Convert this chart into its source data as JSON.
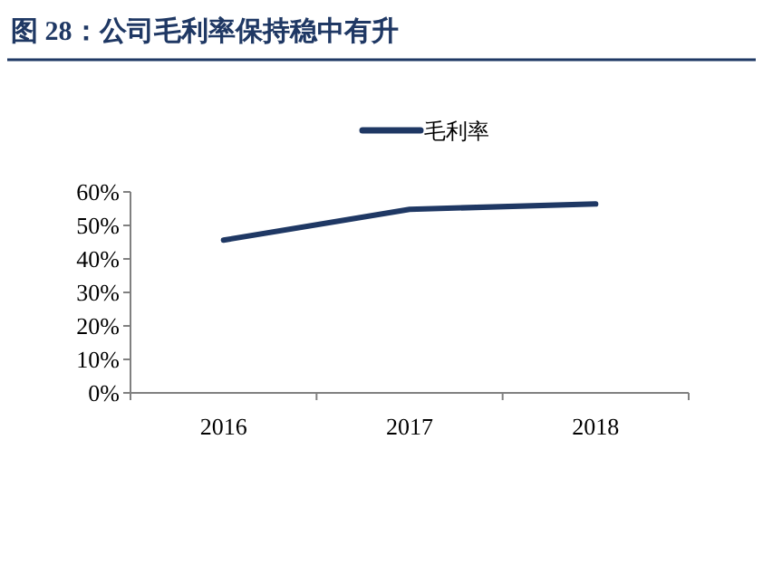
{
  "chart_data": {
    "type": "line",
    "title": "图 28：公司毛利率保持稳中有升",
    "categories": [
      "2016",
      "2017",
      "2018"
    ],
    "series": [
      {
        "name": "毛利率",
        "color": "#1f3864",
        "values": [
          45.6,
          54.8,
          56.4
        ]
      }
    ],
    "ylim": [
      0,
      60
    ],
    "yticks": [
      {
        "value": 0,
        "label": "0%"
      },
      {
        "value": 10,
        "label": "10%"
      },
      {
        "value": 20,
        "label": "20%"
      },
      {
        "value": 30,
        "label": "30%"
      },
      {
        "value": 40,
        "label": "40%"
      },
      {
        "value": 50,
        "label": "50%"
      },
      {
        "value": 60,
        "label": "60%"
      }
    ],
    "grid": false,
    "legend": "top",
    "marker": "none",
    "line_style": "solid"
  }
}
